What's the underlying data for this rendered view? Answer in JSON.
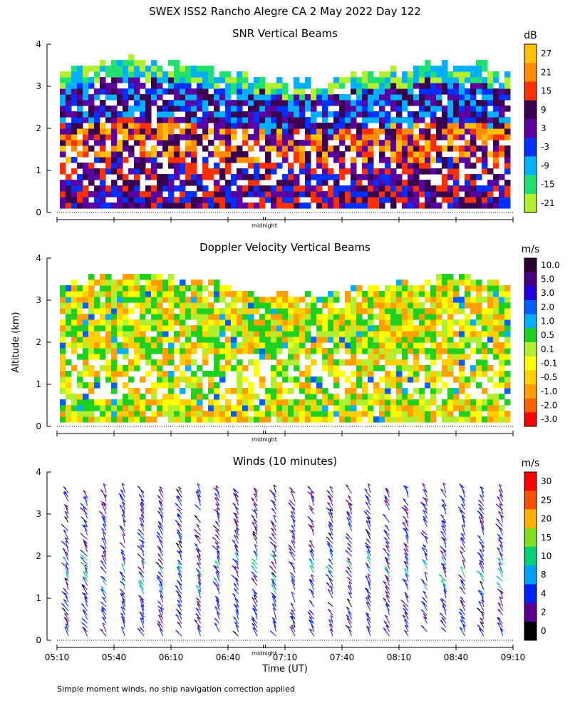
{
  "page": {
    "title": "SWEX ISS2 Rancho Alegre CA   2 May 2022 Day 122",
    "y_axis_label": "Altitude (km)",
    "x_axis_label": "Time (UT)",
    "midnight_label": "midnight",
    "footnote": "Simple moment winds, no ship navigation correction applied"
  },
  "chart_data": [
    {
      "type": "heatmap",
      "title": "SNR Vertical Beams",
      "ylim": [
        0,
        4
      ],
      "yticks": [
        "0",
        "1",
        "2",
        "3",
        "4"
      ],
      "colorbar": {
        "unit": "dB",
        "labels": [
          "27",
          "21",
          "15",
          "9",
          "3",
          "-3",
          "-9",
          "-15",
          "-21"
        ],
        "colors": [
          "#ffc000",
          "#ff8c00",
          "#ff3000",
          "#3a0050",
          "#5a00a0",
          "#0030ff",
          "#00b0ff",
          "#20e070",
          "#b0f030"
        ]
      }
    },
    {
      "type": "heatmap",
      "title": "Doppler Velocity Vertical Beams",
      "ylim": [
        0,
        4
      ],
      "yticks": [
        "0",
        "1",
        "2",
        "3",
        "4"
      ],
      "colorbar": {
        "unit": "m/s",
        "labels": [
          "10.0",
          "5.0",
          "3.0",
          "2.0",
          "1.0",
          "0.5",
          "0.1",
          "-0.1",
          "-0.5",
          "-1.0",
          "-2.0",
          "-3.0"
        ],
        "colors": [
          "#2a0030",
          "#4a0080",
          "#2000e0",
          "#0060ff",
          "#00b0ff",
          "#20d020",
          "#b0f030",
          "#ffff00",
          "#ffd000",
          "#ffa000",
          "#ff6000",
          "#ff0000"
        ]
      }
    },
    {
      "type": "scatter",
      "title": "Winds (10 minutes)",
      "ylim": [
        0,
        4
      ],
      "yticks": [
        "0",
        "1",
        "2",
        "3",
        "4"
      ],
      "xticks": [
        "05:10",
        "05:40",
        "06:10",
        "06:40",
        "07:10",
        "07:40",
        "08:10",
        "08:40",
        "09:10"
      ],
      "colorbar": {
        "unit": "m/s",
        "labels": [
          "30",
          "25",
          "20",
          "15",
          "10",
          "8",
          "4",
          "2",
          "0"
        ],
        "colors": [
          "#ff0000",
          "#ff5000",
          "#ffb000",
          "#80e020",
          "#00d070",
          "#00a0ff",
          "#0020ff",
          "#5a0090",
          "#000000"
        ]
      }
    }
  ]
}
